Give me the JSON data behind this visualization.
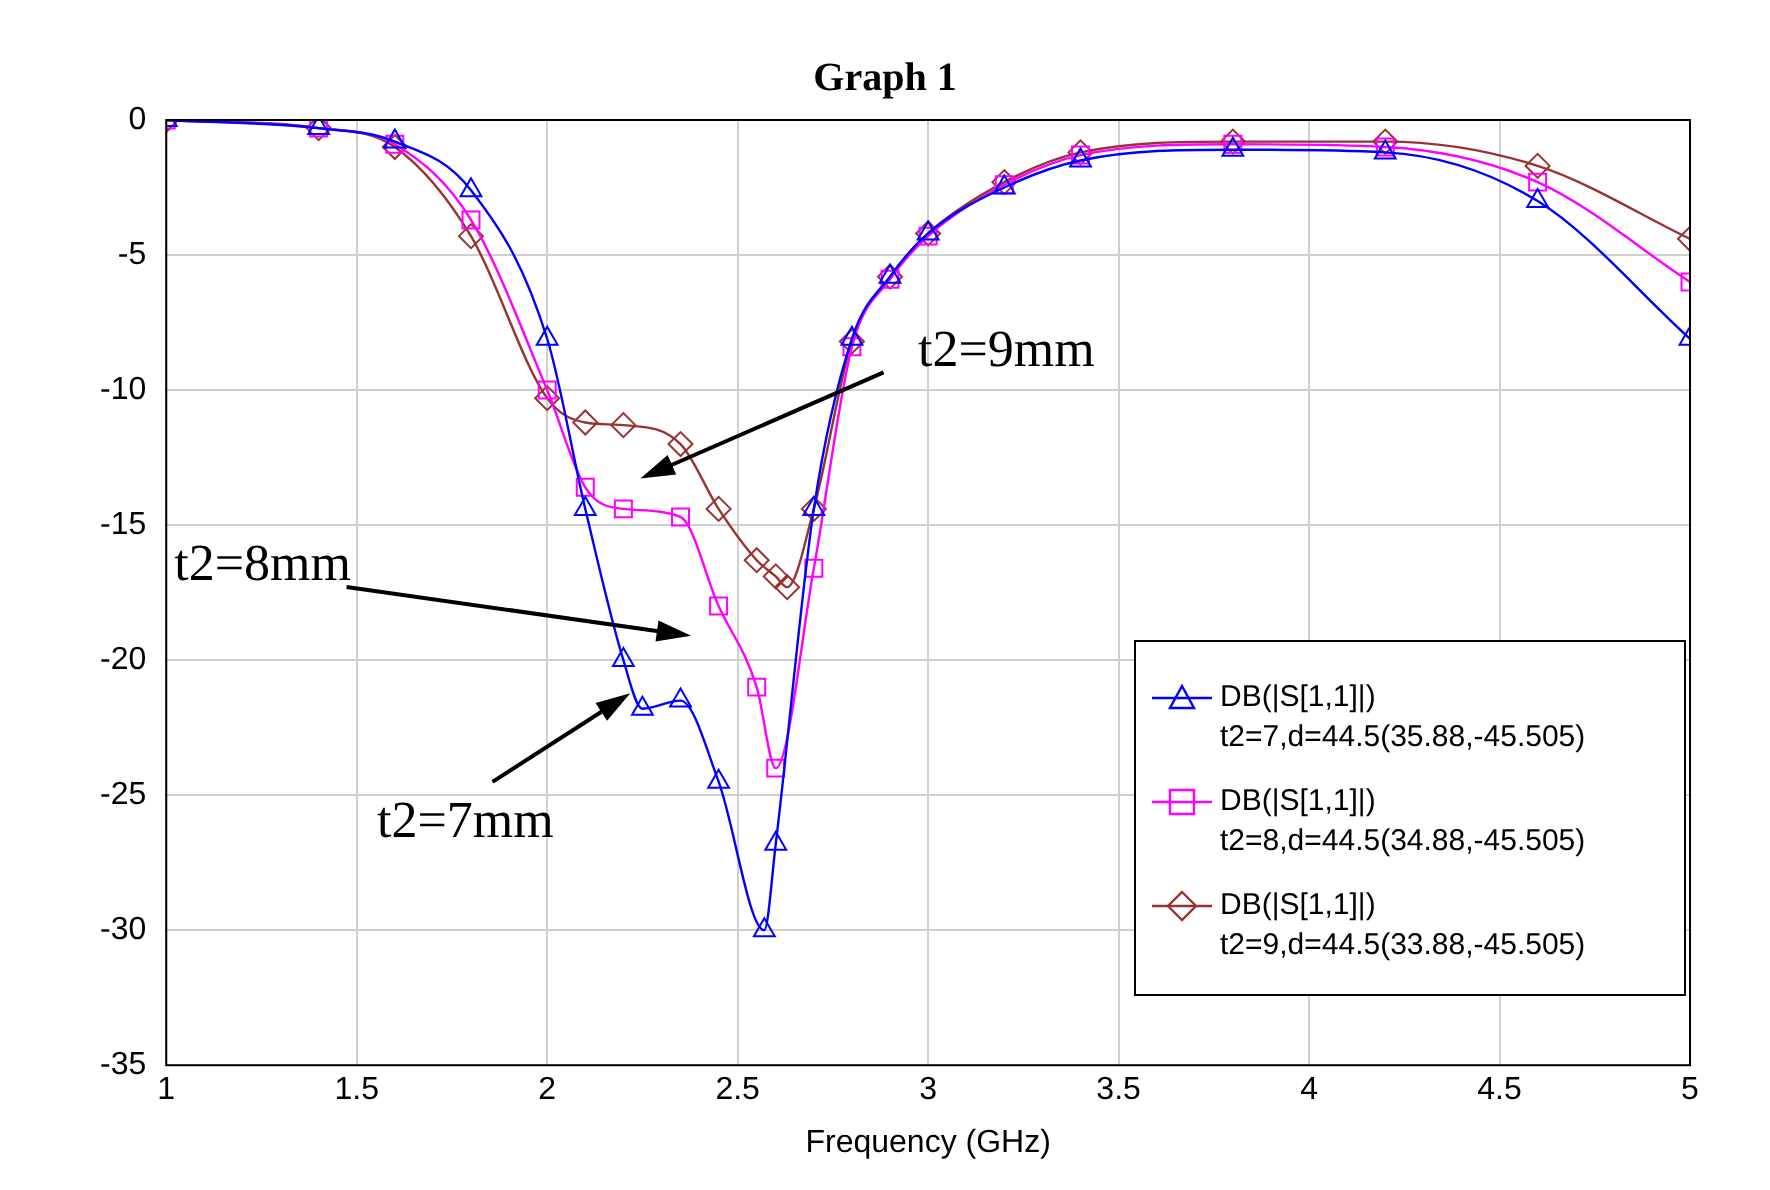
{
  "chart_data": {
    "type": "line",
    "title": "Graph 1",
    "xlabel": "Frequency (GHz)",
    "xlim": [
      1,
      5
    ],
    "xticks": [
      1,
      1.5,
      2,
      2.5,
      3,
      3.5,
      4,
      4.5,
      5
    ],
    "ylim": [
      -35,
      0
    ],
    "yticks": [
      -35,
      -30,
      -25,
      -20,
      -15,
      -10,
      -5,
      0
    ],
    "grid": true,
    "legend": "bottom right",
    "line_style": "solid",
    "series": [
      {
        "name": "DB(|S[1,1]|)\nt2=7,d=44.5(35.88,-45.505)",
        "color": "#0000ff",
        "marker": "triangle",
        "x": [
          1,
          1.4,
          1.6,
          1.8,
          2.0,
          2.1,
          2.2,
          2.25,
          2.35,
          2.45,
          2.57,
          2.6,
          2.7,
          2.8,
          2.9,
          3.0,
          3.2,
          3.4,
          3.8,
          4.2,
          4.6,
          5.0
        ],
        "values": [
          0,
          -0.3,
          -0.8,
          -2.6,
          -8.1,
          -14.4,
          -20,
          -21.8,
          -21.5,
          -24.5,
          -30,
          -26.8,
          -14.4,
          -8.1,
          -5.8,
          -4.2,
          -2.5,
          -1.5,
          -1.1,
          -1.2,
          -3.0,
          -8.1
        ]
      },
      {
        "name": "DB(|S[1,1]|)\nt2=8,d=44.5(34.88,-45.505)",
        "color": "#ff00ff",
        "marker": "square",
        "x": [
          1,
          1.4,
          1.6,
          1.8,
          2.0,
          2.1,
          2.2,
          2.35,
          2.45,
          2.55,
          2.6,
          2.7,
          2.8,
          2.9,
          3.0,
          3.2,
          3.4,
          3.8,
          4.2,
          4.6,
          5.0
        ],
        "values": [
          0,
          -0.3,
          -0.9,
          -3.7,
          -10,
          -13.6,
          -14.4,
          -14.7,
          -18,
          -21,
          -24,
          -16.6,
          -8.4,
          -5.9,
          -4.3,
          -2.4,
          -1.3,
          -0.9,
          -1.0,
          -2.3,
          -6.0
        ]
      },
      {
        "name": "DB(|S[1,1]|)\nt2=9,d=44.5(33.88,-45.505)",
        "color": "#993333",
        "marker": "diamond",
        "x": [
          1,
          1.4,
          1.6,
          1.8,
          2.0,
          2.1,
          2.2,
          2.35,
          2.45,
          2.55,
          2.6,
          2.63,
          2.7,
          2.8,
          2.9,
          3.0,
          3.2,
          3.4,
          3.8,
          4.2,
          4.6,
          5.0
        ],
        "values": [
          0,
          -0.3,
          -1.0,
          -4.3,
          -10.3,
          -11.2,
          -11.3,
          -12,
          -14.4,
          -16.3,
          -16.9,
          -17.3,
          -14.4,
          -8.2,
          -5.8,
          -4.2,
          -2.3,
          -1.2,
          -0.8,
          -0.8,
          -1.7,
          -4.4
        ]
      }
    ],
    "annotations": [
      "t2=9mm",
      "t2=8mm",
      "t2=7mm"
    ]
  }
}
